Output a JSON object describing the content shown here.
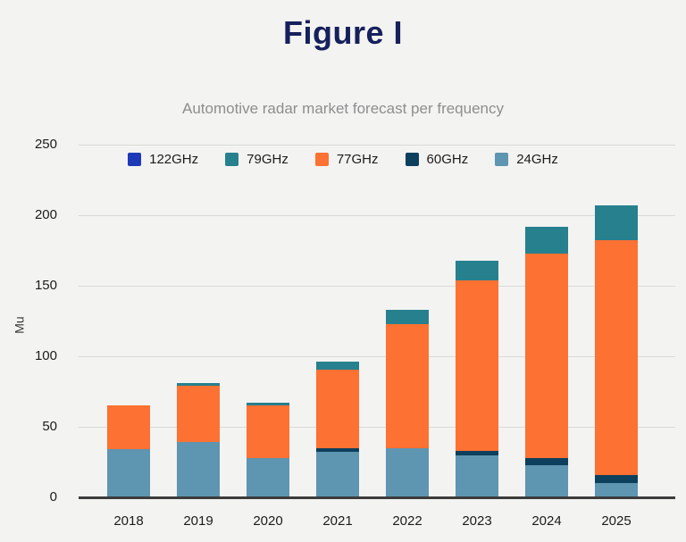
{
  "header": {
    "title": "Figure I"
  },
  "chart_data": {
    "type": "bar",
    "stacked": true,
    "title": "Automotive radar market forecast per frequency",
    "ylabel": "Mu",
    "xlabel": "",
    "categories": [
      "2018",
      "2019",
      "2020",
      "2021",
      "2022",
      "2023",
      "2024",
      "2025"
    ],
    "series": [
      {
        "name": "122GHz",
        "color": "#1c3ab8",
        "values": [
          0,
          0,
          0,
          0,
          0,
          0,
          0,
          0
        ]
      },
      {
        "name": "79GHz",
        "color": "#27808e",
        "values": [
          0,
          2,
          2,
          6,
          10,
          14,
          19,
          25
        ]
      },
      {
        "name": "77GHz",
        "color": "#fd7132",
        "values": [
          31,
          40,
          37,
          56,
          88,
          121,
          145,
          166
        ]
      },
      {
        "name": "60GHz",
        "color": "#0d405c",
        "values": [
          0,
          0,
          0,
          2.5,
          0,
          3,
          5,
          6
        ]
      },
      {
        "name": "24GHz",
        "color": "#5e95b1",
        "values": [
          34,
          39,
          28,
          32,
          35,
          30,
          23,
          10
        ]
      }
    ],
    "stack_order_bottom_to_top": [
      "24GHz",
      "60GHz",
      "77GHz",
      "79GHz",
      "122GHz"
    ],
    "totals": [
      65,
      81,
      67,
      96.5,
      133,
      168,
      192,
      207
    ],
    "ylim": [
      0,
      250
    ],
    "yticks": [
      0,
      50,
      100,
      150,
      200,
      250
    ],
    "grid": true,
    "legend_position": "top"
  },
  "colors": {
    "background": "#f3f3f1",
    "title": "#16205c",
    "subtitle": "#8e8e8e",
    "axis_text": "#1c1c1c",
    "gridline": "#d9d9d7",
    "baseline": "#3c3c3c"
  }
}
